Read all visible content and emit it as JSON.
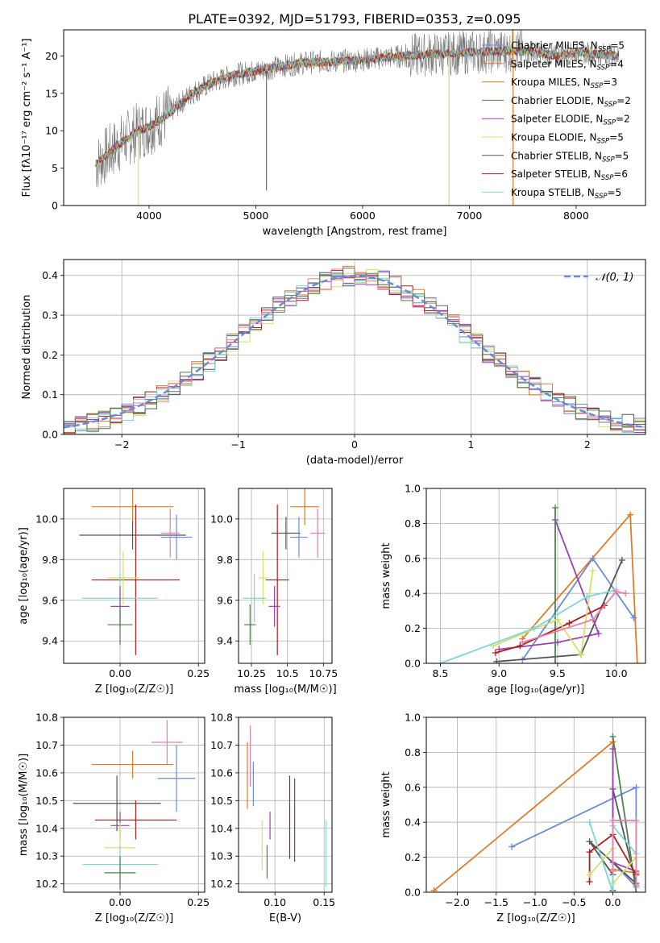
{
  "figure": {
    "title": "PLATE=0392, MJD=51793, FIBERID=0353, z=0.095"
  },
  "chart_data": [
    {
      "id": "spectrum",
      "type": "line",
      "xlabel": "wavelength [Angstrom, rest frame]",
      "ylabel": "Flux [fλ10⁻¹⁷ erg cm⁻² s⁻¹ A⁻¹]",
      "xlim": [
        3200,
        8650
      ],
      "ylim": [
        0,
        23.5
      ],
      "xticks": [
        4000,
        5000,
        6000,
        7000,
        8000
      ],
      "yticks": [
        0,
        5,
        10,
        15,
        20
      ],
      "grid": false,
      "legend_position": "right",
      "continuum": [
        [
          3500,
          5.5
        ],
        [
          3700,
          8
        ],
        [
          3900,
          10
        ],
        [
          4000,
          10.5
        ],
        [
          4200,
          12.5
        ],
        [
          4400,
          15
        ],
        [
          4600,
          16.5
        ],
        [
          4800,
          17.5
        ],
        [
          5000,
          18
        ],
        [
          5200,
          18.5
        ],
        [
          5400,
          19
        ],
        [
          5600,
          19.2
        ],
        [
          5800,
          19.3
        ],
        [
          6000,
          19.5
        ],
        [
          6200,
          19.8
        ],
        [
          6400,
          20
        ],
        [
          6600,
          20.2
        ],
        [
          6800,
          20.3
        ],
        [
          7000,
          20.5
        ],
        [
          7200,
          20.6
        ],
        [
          7400,
          20.7
        ],
        [
          7600,
          20.5
        ],
        [
          7800,
          20
        ],
        [
          8000,
          20.5
        ],
        [
          8200,
          20.3
        ],
        [
          8400,
          20
        ]
      ],
      "series": [
        {
          "name": "Chabrier MILES, N",
          "sub": "SSP",
          "suffix": "=5",
          "color": "#6a8bd8"
        },
        {
          "name": "Salpeter MILES, N",
          "sub": "SSP",
          "suffix": "=4",
          "color": "#e07b28"
        },
        {
          "name": "Kroupa MILES, N",
          "sub": "SSP",
          "suffix": "=3",
          "color": "#c87a1e"
        },
        {
          "name": "Chabrier ELODIE, N",
          "sub": "SSP",
          "suffix": "=2",
          "color": "#4f7f4f"
        },
        {
          "name": "Salpeter ELODIE, N",
          "sub": "SSP",
          "suffix": "=2",
          "color": "#9b3fb5"
        },
        {
          "name": "Kroupa ELODIE, N",
          "sub": "SSP",
          "suffix": "=5",
          "color": "#d4e06a"
        },
        {
          "name": "Chabrier STELIB, N",
          "sub": "SSP",
          "suffix": "=5",
          "color": "#555555"
        },
        {
          "name": "Salpeter STELIB, N",
          "sub": "SSP",
          "suffix": "=6",
          "color": "#b01c1c"
        },
        {
          "name": "Kroupa STELIB, N",
          "sub": "SSP",
          "suffix": "=5",
          "color": "#7fd6d6"
        }
      ]
    },
    {
      "id": "residuals",
      "type": "bar",
      "xlabel": "(data-model)/error",
      "ylabel": "Normed distribution",
      "xlim": [
        -2.5,
        2.5
      ],
      "ylim": [
        0,
        0.44
      ],
      "xticks": [
        -2,
        -1,
        0,
        1,
        2
      ],
      "yticks": [
        0.0,
        0.1,
        0.2,
        0.3,
        0.4
      ],
      "grid": true,
      "legend_position": "top-right",
      "legend_label": "𝒩(0, 1)",
      "bin_width": 0.1,
      "normal_color": "#6a8bd8",
      "hist_colors": [
        "#6a8bd8",
        "#e07b28",
        "#9b3fb5",
        "#d4e06a",
        "#555555",
        "#b01c1c",
        "#7fd6d6",
        "#e87fa8",
        "#4f7f4f"
      ]
    },
    {
      "id": "age_vs_Z",
      "type": "scatter",
      "xlabel": "Z [log₁₀(Z/Z☉)]",
      "ylabel": "age  [log₁₀(age/yr)]",
      "xlim": [
        -0.18,
        0.27
      ],
      "ylim": [
        9.29,
        10.15
      ],
      "xticks": [
        0.0,
        0.25
      ],
      "yticks": [
        9.4,
        9.6,
        9.8,
        10.0
      ],
      "grid": true,
      "points": [
        {
          "x": 0.04,
          "y": 10.06,
          "xerr": 0.13,
          "yerr": 0.09,
          "color": "#e07b28"
        },
        {
          "x": 0.04,
          "y": 9.92,
          "xerr": 0.17,
          "yerr": 0.07,
          "color": "#555555"
        },
        {
          "x": 0.18,
          "y": 9.91,
          "xerr": 0.05,
          "yerr": 0.11,
          "color": "#6a8bd8"
        },
        {
          "x": 0.16,
          "y": 9.93,
          "xerr": 0.03,
          "yerr": 0.12,
          "color": "#e87fa8"
        },
        {
          "x": 0.05,
          "y": 9.7,
          "xerr": 0.14,
          "yerr": 0.37,
          "color": "#b01c1c"
        },
        {
          "x": 0.01,
          "y": 9.71,
          "xerr": 0.05,
          "yerr": 0.13,
          "color": "#d4e06a"
        },
        {
          "x": 0.0,
          "y": 9.61,
          "xerr": 0.12,
          "yerr": 0.12,
          "color": "#7fd6d6"
        },
        {
          "x": 0.0,
          "y": 9.57,
          "xerr": 0.03,
          "yerr": 0.1,
          "color": "#9b3fb5"
        },
        {
          "x": 0.0,
          "y": 9.48,
          "xerr": 0.04,
          "yerr": 0.1,
          "color": "#4f7f4f"
        }
      ]
    },
    {
      "id": "age_vs_mass",
      "type": "scatter",
      "xlabel": "mass [log₁₀(M/M☉)]",
      "ylabel": "",
      "xlim": [
        10.16,
        10.81
      ],
      "ylim": [
        9.29,
        10.15
      ],
      "xticks": [
        10.25,
        10.5,
        10.75
      ],
      "yticks": [
        9.4,
        9.6,
        9.8,
        10.0
      ],
      "grid": true,
      "points": [
        {
          "x": 10.62,
          "y": 10.06,
          "xerr": 0.1,
          "yerr": 0.09,
          "color": "#e07b28"
        },
        {
          "x": 10.49,
          "y": 9.93,
          "xerr": 0.1,
          "yerr": 0.08,
          "color": "#555555"
        },
        {
          "x": 10.58,
          "y": 9.91,
          "xerr": 0.06,
          "yerr": 0.1,
          "color": "#6a8bd8"
        },
        {
          "x": 10.71,
          "y": 9.93,
          "xerr": 0.05,
          "yerr": 0.12,
          "color": "#e87fa8"
        },
        {
          "x": 10.43,
          "y": 9.7,
          "xerr": 0.08,
          "yerr": 0.37,
          "color": "#b01c1c"
        },
        {
          "x": 10.33,
          "y": 9.71,
          "xerr": 0.03,
          "yerr": 0.13,
          "color": "#d4e06a"
        },
        {
          "x": 10.27,
          "y": 9.61,
          "xerr": 0.08,
          "yerr": 0.12,
          "color": "#7fd6d6"
        },
        {
          "x": 10.41,
          "y": 9.57,
          "xerr": 0.04,
          "yerr": 0.1,
          "color": "#9b3fb5"
        },
        {
          "x": 10.24,
          "y": 9.48,
          "xerr": 0.04,
          "yerr": 0.1,
          "color": "#4f7f4f"
        }
      ]
    },
    {
      "id": "weight_vs_age",
      "type": "line",
      "xlabel": "age  [log₁₀(age/yr)]",
      "ylabel": "mass weight",
      "xlim": [
        8.38,
        10.25
      ],
      "ylim": [
        0.0,
        1.0
      ],
      "xticks": [
        8.5,
        9.0,
        9.5,
        10.0
      ],
      "yticks": [
        0.0,
        0.2,
        0.4,
        0.6,
        0.8,
        1.0
      ],
      "grid": true,
      "series": [
        {
          "color": "#e07b28",
          "points": [
            [
              9.2,
              0.14
            ],
            [
              10.12,
              0.85
            ],
            [
              10.18,
              0.0
            ]
          ]
        },
        {
          "color": "#6a8bd8",
          "points": [
            [
              9.2,
              0.02
            ],
            [
              9.8,
              0.6
            ],
            [
              10.15,
              0.26
            ]
          ]
        },
        {
          "color": "#555555",
          "points": [
            [
              8.98,
              0.01
            ],
            [
              9.7,
              0.05
            ],
            [
              10.05,
              0.59
            ]
          ]
        },
        {
          "color": "#9b3fb5",
          "points": [
            [
              9.48,
              0.82
            ],
            [
              9.85,
              0.17
            ],
            [
              9.5,
              0.12
            ],
            [
              9.0,
              0.08
            ]
          ]
        },
        {
          "color": "#4f7f4f",
          "points": [
            [
              9.48,
              0.0
            ],
            [
              9.48,
              0.89
            ]
          ]
        },
        {
          "color": "#b01c1c",
          "points": [
            [
              8.97,
              0.06
            ],
            [
              9.18,
              0.1
            ],
            [
              9.6,
              0.23
            ],
            [
              9.9,
              0.33
            ]
          ]
        },
        {
          "color": "#d4e06a",
          "points": [
            [
              8.95,
              0.1
            ],
            [
              9.5,
              0.25
            ],
            [
              9.7,
              0.05
            ],
            [
              9.8,
              0.53
            ]
          ]
        },
        {
          "color": "#7fd6d6",
          "points": [
            [
              8.5,
              0.0
            ],
            [
              9.3,
              0.2
            ],
            [
              9.75,
              0.38
            ],
            [
              10.0,
              0.42
            ]
          ]
        },
        {
          "color": "#e87fa8",
          "points": [
            [
              9.2,
              0.12
            ],
            [
              9.8,
              0.25
            ],
            [
              10.0,
              0.41
            ],
            [
              10.08,
              0.4
            ]
          ]
        }
      ]
    },
    {
      "id": "mass_vs_Z",
      "type": "scatter",
      "xlabel": "Z [log₁₀(Z/Z☉)]",
      "ylabel": "mass [log₁₀(M/M☉)]",
      "xlim": [
        -0.18,
        0.27
      ],
      "ylim": [
        10.17,
        10.8
      ],
      "xticks": [
        0.0,
        0.25
      ],
      "yticks": [
        10.2,
        10.3,
        10.4,
        10.5,
        10.6,
        10.7,
        10.8
      ],
      "grid": true,
      "points": [
        {
          "x": 0.15,
          "y": 10.71,
          "xerr": 0.05,
          "yerr": 0.08,
          "color": "#e87fa8"
        },
        {
          "x": 0.04,
          "y": 10.63,
          "xerr": 0.13,
          "yerr": 0.05,
          "color": "#e07b28"
        },
        {
          "x": 0.18,
          "y": 10.58,
          "xerr": 0.06,
          "yerr": 0.12,
          "color": "#6a8bd8"
        },
        {
          "x": -0.01,
          "y": 10.49,
          "xerr": 0.14,
          "yerr": 0.1,
          "color": "#555555"
        },
        {
          "x": 0.05,
          "y": 10.43,
          "xerr": 0.13,
          "yerr": 0.07,
          "color": "#b01c1c"
        },
        {
          "x": 0.0,
          "y": 10.41,
          "xerr": 0.03,
          "yerr": 0.05,
          "color": "#9b3fb5"
        },
        {
          "x": 0.0,
          "y": 10.33,
          "xerr": 0.05,
          "yerr": 0.09,
          "color": "#d4e06a"
        },
        {
          "x": 0.0,
          "y": 10.27,
          "xerr": 0.12,
          "yerr": 0.07,
          "color": "#7fd6d6"
        },
        {
          "x": 0.0,
          "y": 10.24,
          "xerr": 0.05,
          "yerr": 0.06,
          "color": "#4f7f4f"
        }
      ]
    },
    {
      "id": "mass_vs_ebv",
      "type": "scatter",
      "xlabel": "E(B-V)",
      "ylabel": "",
      "xlim": [
        0.063,
        0.158
      ],
      "ylim": [
        10.17,
        10.8
      ],
      "xticks": [
        0.1,
        0.15
      ],
      "xtick_labels": [
        "0.10",
        "0.15"
      ],
      "yticks": [
        10.2,
        10.3,
        10.4,
        10.5,
        10.6,
        10.7,
        10.8
      ],
      "grid": true,
      "points": [
        {
          "x": 0.072,
          "y": 10.59,
          "xerr": 0,
          "yerr": 0.12,
          "color": "#e07b28"
        },
        {
          "x": 0.075,
          "y": 10.66,
          "xerr": 0,
          "yerr": 0.11,
          "color": "#e87fa8"
        },
        {
          "x": 0.078,
          "y": 10.56,
          "xerr": 0,
          "yerr": 0.08,
          "color": "#6a8bd8"
        },
        {
          "x": 0.087,
          "y": 10.34,
          "xerr": 0,
          "yerr": 0.09,
          "color": "#d4e06a"
        },
        {
          "x": 0.092,
          "y": 10.28,
          "xerr": 0,
          "yerr": 0.06,
          "color": "#4f7f4f"
        },
        {
          "x": 0.095,
          "y": 10.41,
          "xerr": 0,
          "yerr": 0.05,
          "color": "#9b3fb5"
        },
        {
          "x": 0.115,
          "y": 10.44,
          "xerr": 0,
          "yerr": 0.15,
          "color": "#b01c1c"
        },
        {
          "x": 0.12,
          "y": 10.43,
          "xerr": 0,
          "yerr": 0.15,
          "color": "#555555"
        },
        {
          "x": 0.152,
          "y": 10.31,
          "xerr": 0,
          "yerr": 0.12,
          "color": "#7fd6d6"
        }
      ]
    },
    {
      "id": "weight_vs_Z",
      "type": "line",
      "xlabel": "Z [log₁₀(Z/Z☉)]",
      "ylabel": "mass weight",
      "xlim": [
        -2.4,
        0.42
      ],
      "ylim": [
        0.0,
        1.0
      ],
      "xticks": [
        -2.0,
        -1.5,
        -1.0,
        -0.5,
        0.0
      ],
      "yticks": [
        0.0,
        0.2,
        0.4,
        0.6,
        0.8,
        1.0
      ],
      "grid": true,
      "series": [
        {
          "color": "#e07b28",
          "points": [
            [
              -2.3,
              0.01
            ],
            [
              0.0,
              0.86
            ],
            [
              0.0,
              0.13
            ],
            [
              0.3,
              0.11
            ]
          ]
        },
        {
          "color": "#6a8bd8",
          "points": [
            [
              -1.3,
              0.26
            ],
            [
              0.3,
              0.6
            ],
            [
              0.3,
              0.03
            ],
            [
              0.0,
              0.17
            ]
          ]
        },
        {
          "color": "#555555",
          "points": [
            [
              0.0,
              0.01
            ],
            [
              0.0,
              0.59
            ],
            [
              0.3,
              0.05
            ],
            [
              -0.3,
              0.29
            ],
            [
              0.0,
              0.1
            ]
          ]
        },
        {
          "color": "#9b3fb5",
          "points": [
            [
              0.0,
              0.82
            ],
            [
              0.0,
              0.17
            ],
            [
              0.3,
              0.12
            ]
          ]
        },
        {
          "color": "#4f7f4f",
          "points": [
            [
              0.0,
              0.89
            ],
            [
              0.3,
              0.0
            ]
          ]
        },
        {
          "color": "#b01c1c",
          "points": [
            [
              -0.3,
              0.06
            ],
            [
              -0.3,
              0.23
            ],
            [
              0.0,
              0.33
            ],
            [
              0.3,
              0.1
            ]
          ]
        },
        {
          "color": "#d4e06a",
          "points": [
            [
              -0.3,
              0.1
            ],
            [
              0.0,
              0.25
            ],
            [
              0.0,
              0.05
            ],
            [
              0.3,
              0.2
            ]
          ]
        },
        {
          "color": "#7fd6d6",
          "points": [
            [
              -0.3,
              0.4
            ],
            [
              0.0,
              0.0
            ],
            [
              0.0,
              0.38
            ],
            [
              0.3,
              0.22
            ]
          ]
        },
        {
          "color": "#e87fa8",
          "points": [
            [
              0.0,
              0.12
            ],
            [
              0.0,
              0.41
            ],
            [
              0.3,
              0.41
            ],
            [
              0.3,
              0.04
            ]
          ]
        }
      ]
    }
  ]
}
